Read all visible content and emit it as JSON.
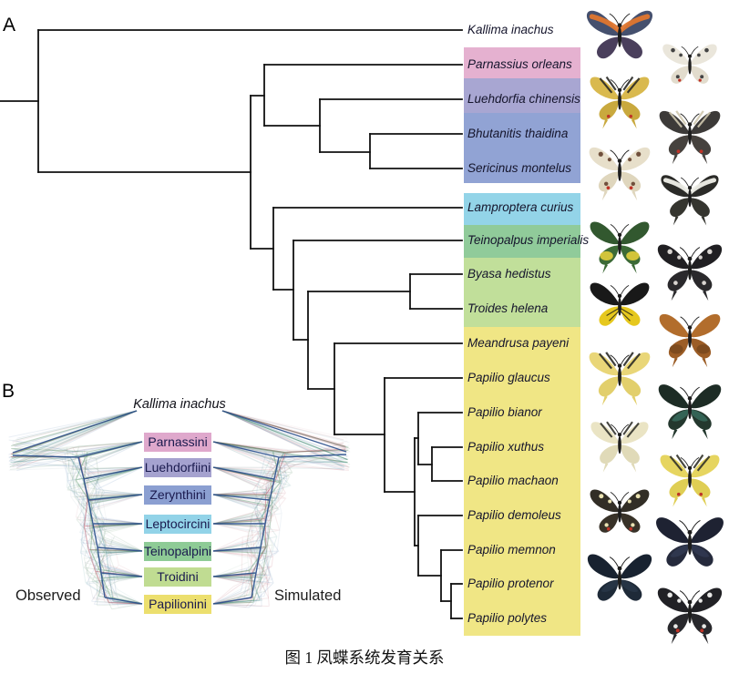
{
  "figure": {
    "panel_a_letter": "A",
    "panel_b_letter": "B",
    "caption": "图 1 凤蝶系统发育关系"
  },
  "panel_a": {
    "group_colors": {
      "pink": "#e5b1d0",
      "purple": "#a8a6d2",
      "blue": "#91a3d4",
      "lightblue": "#93d4e8",
      "green": "#90cb9a",
      "lightgreen": "#c1df9a",
      "yellow": "#f0e685"
    },
    "species": [
      {
        "name": "Kallima inachus",
        "group": "none",
        "butterfly": {
          "fw": "#45506e",
          "hw": "#4a3f5c",
          "accent": "#e0762e",
          "pattern": "band",
          "tails": false,
          "red_spot": false
        }
      },
      {
        "name": "Parnassius orleans",
        "group": "pink",
        "butterfly": {
          "fw": "#eae6db",
          "hw": "#e2dccd",
          "accent": "#444444",
          "pattern": "spots",
          "tails": false,
          "red_spot": true
        }
      },
      {
        "name": "Luehdorfia chinensis",
        "group": "purple",
        "butterfly": {
          "fw": "#d9b94e",
          "hw": "#c9a93e",
          "accent": "#2a2a26",
          "pattern": "stripes",
          "tails": true,
          "red_spot": true
        }
      },
      {
        "name": "Bhutanitis thaidina",
        "group": "blue",
        "butterfly": {
          "fw": "#3c3a38",
          "hw": "#46423e",
          "accent": "#cfc7ae",
          "pattern": "stripes",
          "tails": true,
          "red_spot": true
        }
      },
      {
        "name": "Sericinus montelus",
        "group": "blue",
        "butterfly": {
          "fw": "#e7dfca",
          "hw": "#dfd6bd",
          "accent": "#70503c",
          "pattern": "spots",
          "tails": true,
          "red_spot": true
        }
      },
      {
        "name": "Lamproptera curius",
        "group": "lightblue",
        "butterfly": {
          "fw": "#2b2b28",
          "hw": "#35352f",
          "accent": "#efefe8",
          "pattern": "band",
          "tails": true,
          "red_spot": false
        }
      },
      {
        "name": "Teinopalpus imperialis",
        "group": "green",
        "butterfly": {
          "fw": "#32582f",
          "hw": "#3c6a36",
          "accent": "#d9c93c",
          "pattern": "patch",
          "tails": true,
          "red_spot": false
        }
      },
      {
        "name": "Byasa hedistus",
        "group": "lightgreen",
        "butterfly": {
          "fw": "#201f22",
          "hw": "#2a292c",
          "accent": "#d8d4d0",
          "pattern": "spots",
          "tails": true,
          "red_spot": false
        }
      },
      {
        "name": "Troides helena",
        "group": "lightgreen",
        "butterfly": {
          "fw": "#191919",
          "hw": "#e6c81e",
          "accent": "#1c1c18",
          "pattern": "veins",
          "tails": false,
          "red_spot": false
        }
      },
      {
        "name": "Meandrusa payeni",
        "group": "yellow",
        "butterfly": {
          "fw": "#b26d2c",
          "hw": "#9c5d26",
          "accent": "#7c4a1e",
          "pattern": "patch",
          "tails": true,
          "red_spot": false
        }
      },
      {
        "name": "Papilio glaucus",
        "group": "yellow",
        "butterfly": {
          "fw": "#e9d678",
          "hw": "#e2cf6c",
          "accent": "#2b2b26",
          "pattern": "stripes",
          "tails": true,
          "red_spot": false
        }
      },
      {
        "name": "Papilio bianor",
        "group": "yellow",
        "butterfly": {
          "fw": "#1d2c25",
          "hw": "#24382e",
          "accent": "#3f8070",
          "pattern": "sheen",
          "tails": true,
          "red_spot": false
        }
      },
      {
        "name": "Papilio xuthus",
        "group": "yellow",
        "butterfly": {
          "fw": "#eae4c4",
          "hw": "#e0dab8",
          "accent": "#33332c",
          "pattern": "stripes",
          "tails": true,
          "red_spot": false
        }
      },
      {
        "name": "Papilio machaon",
        "group": "yellow",
        "butterfly": {
          "fw": "#e6d560",
          "hw": "#dfce54",
          "accent": "#33332a",
          "pattern": "stripes",
          "tails": true,
          "red_spot": true
        }
      },
      {
        "name": "Papilio demoleus",
        "group": "yellow",
        "butterfly": {
          "fw": "#322e26",
          "hw": "#383228",
          "accent": "#eae2b2",
          "pattern": "spots",
          "tails": false,
          "red_spot": true
        }
      },
      {
        "name": "Papilio memnon",
        "group": "yellow",
        "butterfly": {
          "fw": "#1e2232",
          "hw": "#252a3c",
          "accent": "#37405a",
          "pattern": "sheen",
          "tails": false,
          "red_spot": false
        }
      },
      {
        "name": "Papilio protenor",
        "group": "yellow",
        "butterfly": {
          "fw": "#182230",
          "hw": "#1e2a38",
          "accent": "#2c3c4e",
          "pattern": "sheen",
          "tails": false,
          "red_spot": false
        }
      },
      {
        "name": "Papilio polytes",
        "group": "yellow",
        "butterfly": {
          "fw": "#212125",
          "hw": "#28282c",
          "accent": "#e8e8e6",
          "pattern": "spots",
          "tails": true,
          "red_spot": true
        }
      }
    ]
  },
  "panel_b": {
    "root_label": "Kallima inachus",
    "left_label": "Observed",
    "right_label": "Simulated",
    "tribes": [
      {
        "label": "Parnassini",
        "color": "#dfa8cc"
      },
      {
        "label": "Luehdorfiini",
        "color": "#a5a2cf"
      },
      {
        "label": "Zerynthini",
        "color": "#8b9fd1"
      },
      {
        "label": "Leptocircini",
        "color": "#92d3e8"
      },
      {
        "label": "Teinopalpini",
        "color": "#8ecb96"
      },
      {
        "label": "Troidini",
        "color": "#c0dc92"
      },
      {
        "label": "Papilionini",
        "color": "#ecdf6e"
      }
    ],
    "densitree_colors": {
      "consensus": "#2a4f8c",
      "palette": [
        "#2f5f9e",
        "#4a7ab0",
        "#418a50",
        "#2f6f40",
        "#b34a5c",
        "#3a8a8c",
        "#6a7a8a"
      ]
    }
  }
}
